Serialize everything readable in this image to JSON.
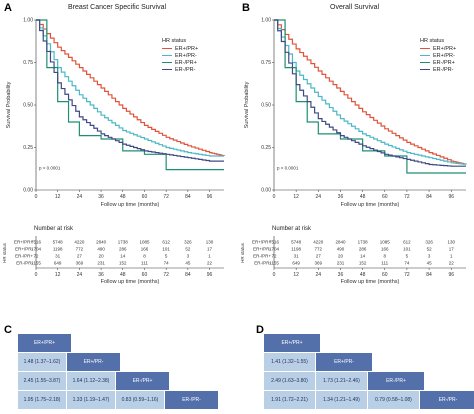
{
  "panels": [
    {
      "letter": "A",
      "title": "Breast Cancer Specific Survival",
      "pvalue": "p < 0.0001",
      "ylabel": "Survival Probability",
      "xlabel": "Follow up time (months)",
      "risk_title": "Number at risk",
      "risk_ylabel": "HR status",
      "legend_title": "HR status",
      "risk_rows": [
        [
          "7516",
          "5748",
          "4220",
          "2840",
          "1738",
          "1085",
          "612",
          "326",
          "130"
        ],
        [
          "1704",
          "1198",
          "772",
          "490",
          "286",
          "166",
          "101",
          "52",
          "17"
        ],
        [
          "72",
          "31",
          "27",
          "20",
          "14",
          "8",
          "5",
          "3",
          "1"
        ],
        [
          "1155",
          "649",
          "369",
          "231",
          "152",
          "111",
          "74",
          "45",
          "22"
        ]
      ]
    },
    {
      "letter": "B",
      "title": "Overall Survival",
      "pvalue": "p < 0.0001",
      "ylabel": "Survival Probability",
      "xlabel": "Follow up time (months)",
      "risk_title": "Number at risk",
      "risk_ylabel": "HR status",
      "legend_title": "HR status",
      "risk_rows": [
        [
          "7516",
          "5748",
          "4220",
          "2840",
          "1738",
          "1085",
          "612",
          "326",
          "130"
        ],
        [
          "1704",
          "1198",
          "772",
          "490",
          "286",
          "166",
          "101",
          "52",
          "17"
        ],
        [
          "72",
          "31",
          "27",
          "20",
          "14",
          "8",
          "5",
          "3",
          "1"
        ],
        [
          "1155",
          "649",
          "369",
          "231",
          "152",
          "111",
          "74",
          "45",
          "22"
        ]
      ]
    }
  ],
  "chart_data": [
    {
      "type": "line",
      "title": "Breast Cancer Specific Survival",
      "xlabel": "Follow up time (months)",
      "ylabel": "Survival Probability",
      "x_ticks": [
        "0",
        "12",
        "24",
        "36",
        "48",
        "60",
        "72",
        "84",
        "96"
      ],
      "y_ticks": [
        "0.00",
        "0.25",
        "0.50",
        "0.75",
        "1.00"
      ],
      "xlim": [
        0,
        104
      ],
      "ylim": [
        0,
        1
      ],
      "legend_position": "top-right",
      "colors": [
        "#e0533b",
        "#4bb8c5",
        "#1f8f73",
        "#3f4a82"
      ],
      "series": [
        {
          "name": "ER+/PR+",
          "x": [
            0,
            12,
            24,
            36,
            48,
            60,
            72,
            84,
            96,
            104
          ],
          "y": [
            1.0,
            0.84,
            0.72,
            0.6,
            0.48,
            0.38,
            0.31,
            0.26,
            0.22,
            0.2
          ]
        },
        {
          "name": "ER+/PR-",
          "x": [
            0,
            12,
            24,
            36,
            48,
            60,
            72,
            84,
            96,
            104
          ],
          "y": [
            1.0,
            0.72,
            0.56,
            0.44,
            0.35,
            0.3,
            0.25,
            0.22,
            0.2,
            0.2
          ]
        },
        {
          "name": "ER-/PR+",
          "x": [
            0,
            6,
            12,
            18,
            24,
            36,
            48,
            60,
            72,
            84,
            96,
            104
          ],
          "y": [
            1.0,
            0.72,
            0.52,
            0.4,
            0.32,
            0.3,
            0.23,
            0.21,
            0.12,
            0.12,
            0.12,
            0.12
          ]
        },
        {
          "name": "ER-/PR-",
          "x": [
            0,
            12,
            24,
            36,
            48,
            60,
            72,
            84,
            96,
            104
          ],
          "y": [
            1.0,
            0.63,
            0.43,
            0.33,
            0.27,
            0.23,
            0.21,
            0.19,
            0.17,
            0.17
          ]
        }
      ]
    },
    {
      "type": "line",
      "title": "Overall Survival",
      "xlabel": "Follow up time (months)",
      "ylabel": "Survival Probability",
      "x_ticks": [
        "0",
        "12",
        "24",
        "36",
        "48",
        "60",
        "72",
        "84",
        "96"
      ],
      "y_ticks": [
        "0.00",
        "0.25",
        "0.50",
        "0.75",
        "1.00"
      ],
      "xlim": [
        0,
        104
      ],
      "ylim": [
        0,
        1
      ],
      "legend_position": "top-right",
      "colors": [
        "#e0533b",
        "#4bb8c5",
        "#1f8f73",
        "#3f4a82"
      ],
      "series": [
        {
          "name": "ER+/PR+",
          "x": [
            0,
            12,
            24,
            36,
            48,
            60,
            72,
            84,
            96,
            104
          ],
          "y": [
            1.0,
            0.83,
            0.7,
            0.58,
            0.46,
            0.36,
            0.28,
            0.22,
            0.17,
            0.15
          ]
        },
        {
          "name": "ER+/PR-",
          "x": [
            0,
            12,
            24,
            36,
            48,
            60,
            72,
            84,
            96,
            104
          ],
          "y": [
            1.0,
            0.7,
            0.55,
            0.42,
            0.33,
            0.27,
            0.22,
            0.19,
            0.16,
            0.15
          ]
        },
        {
          "name": "ER-/PR+",
          "x": [
            0,
            6,
            12,
            18,
            24,
            36,
            48,
            60,
            72,
            84,
            96,
            104
          ],
          "y": [
            1.0,
            0.72,
            0.52,
            0.4,
            0.33,
            0.3,
            0.23,
            0.2,
            0.1,
            0.1,
            0.1,
            0.1
          ]
        },
        {
          "name": "ER-/PR-",
          "x": [
            0,
            12,
            24,
            36,
            48,
            60,
            72,
            84,
            96,
            104
          ],
          "y": [
            1.0,
            0.62,
            0.42,
            0.32,
            0.26,
            0.21,
            0.18,
            0.15,
            0.14,
            0.14
          ]
        }
      ]
    },
    {
      "type": "table",
      "letter": "C",
      "groups": [
        "ER+/PR+",
        "ER+/PR-",
        "ER-/PR+",
        "ER-/PR-"
      ],
      "cells": [
        [
          "1.48 (1.37–1.62)"
        ],
        [
          "2.45 (1.55–3.87)",
          "1.64 (1.12–2.38)"
        ],
        [
          "1.95 (1.75–2.18)",
          "1.33 (1.19–1.47)",
          "0.83 (0.59–1.16)"
        ]
      ]
    },
    {
      "type": "table",
      "letter": "D",
      "groups": [
        "ER+/PR+",
        "ER+/PR-",
        "ER-/PR+",
        "ER-/PR-"
      ],
      "cells": [
        [
          "1.41 (1.32–1.55)"
        ],
        [
          "2.49 (1.63–3.80)",
          "1.73 (1.21–2.46)"
        ],
        [
          "1.91 (1.72–2.21)",
          "1.34 (1.21–1.49)",
          "0.79 (0.58–1.08)"
        ]
      ]
    }
  ]
}
